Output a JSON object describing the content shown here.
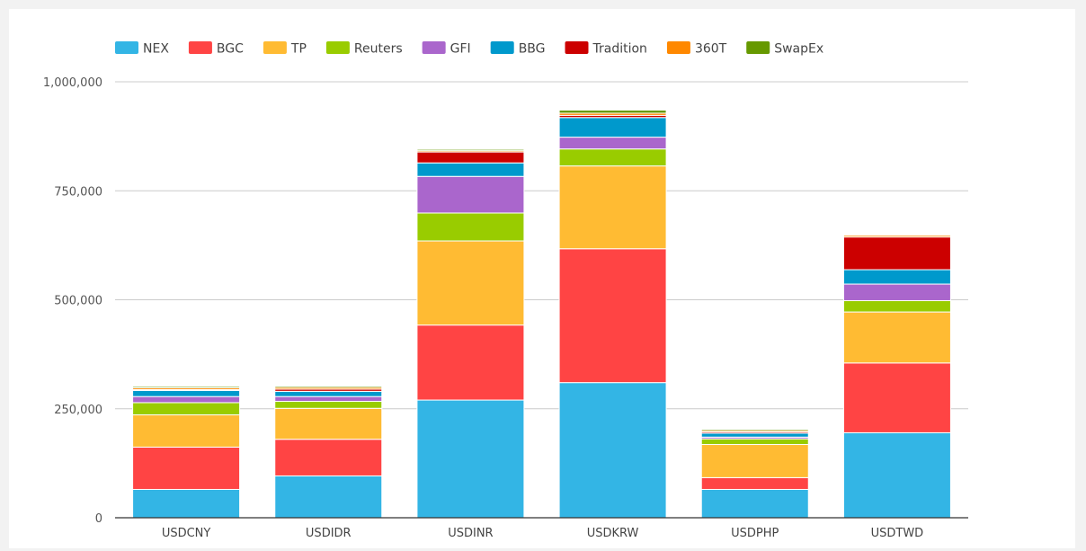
{
  "chart_data": {
    "type": "bar",
    "stacked": true,
    "categories": [
      "USDCNY",
      "USDIDR",
      "USDINR",
      "USDKRW",
      "USDPHP",
      "USDTWD"
    ],
    "ylim": [
      0,
      1000000
    ],
    "yticks": [
      0,
      250000,
      500000,
      750000,
      1000000
    ],
    "ytick_labels": [
      "0",
      "250,000",
      "500,000",
      "750,000",
      "1,000,000"
    ],
    "grid": true,
    "legend_position": "top-left",
    "series": [
      {
        "name": "NEX",
        "color": "#33b5e5",
        "values": [
          65000,
          96000,
          270000,
          310000,
          65000,
          195000
        ]
      },
      {
        "name": "BGC",
        "color": "#ff4444",
        "values": [
          97000,
          84000,
          172000,
          307000,
          27000,
          160000
        ]
      },
      {
        "name": "TP",
        "color": "#ffbb33",
        "values": [
          74000,
          71000,
          193000,
          190000,
          76000,
          117000
        ]
      },
      {
        "name": "Reuters",
        "color": "#99cc00",
        "values": [
          28000,
          16000,
          64000,
          39000,
          13000,
          26000
        ]
      },
      {
        "name": "GFI",
        "color": "#aa66cc",
        "values": [
          14000,
          11000,
          84000,
          27000,
          4000,
          38000
        ]
      },
      {
        "name": "BBG",
        "color": "#0099cc",
        "values": [
          14000,
          12000,
          31000,
          45000,
          9000,
          33000
        ]
      },
      {
        "name": "Tradition",
        "color": "#cc0000",
        "values": [
          2000,
          5000,
          25000,
          5000,
          3000,
          75000
        ]
      },
      {
        "name": "360T",
        "color": "#ff8800",
        "values": [
          4000,
          4000,
          3000,
          5000,
          3000,
          4000
        ]
      },
      {
        "name": "SwapEx",
        "color": "#669900",
        "values": [
          3000,
          3000,
          3000,
          7000,
          3000,
          2000
        ]
      }
    ]
  }
}
